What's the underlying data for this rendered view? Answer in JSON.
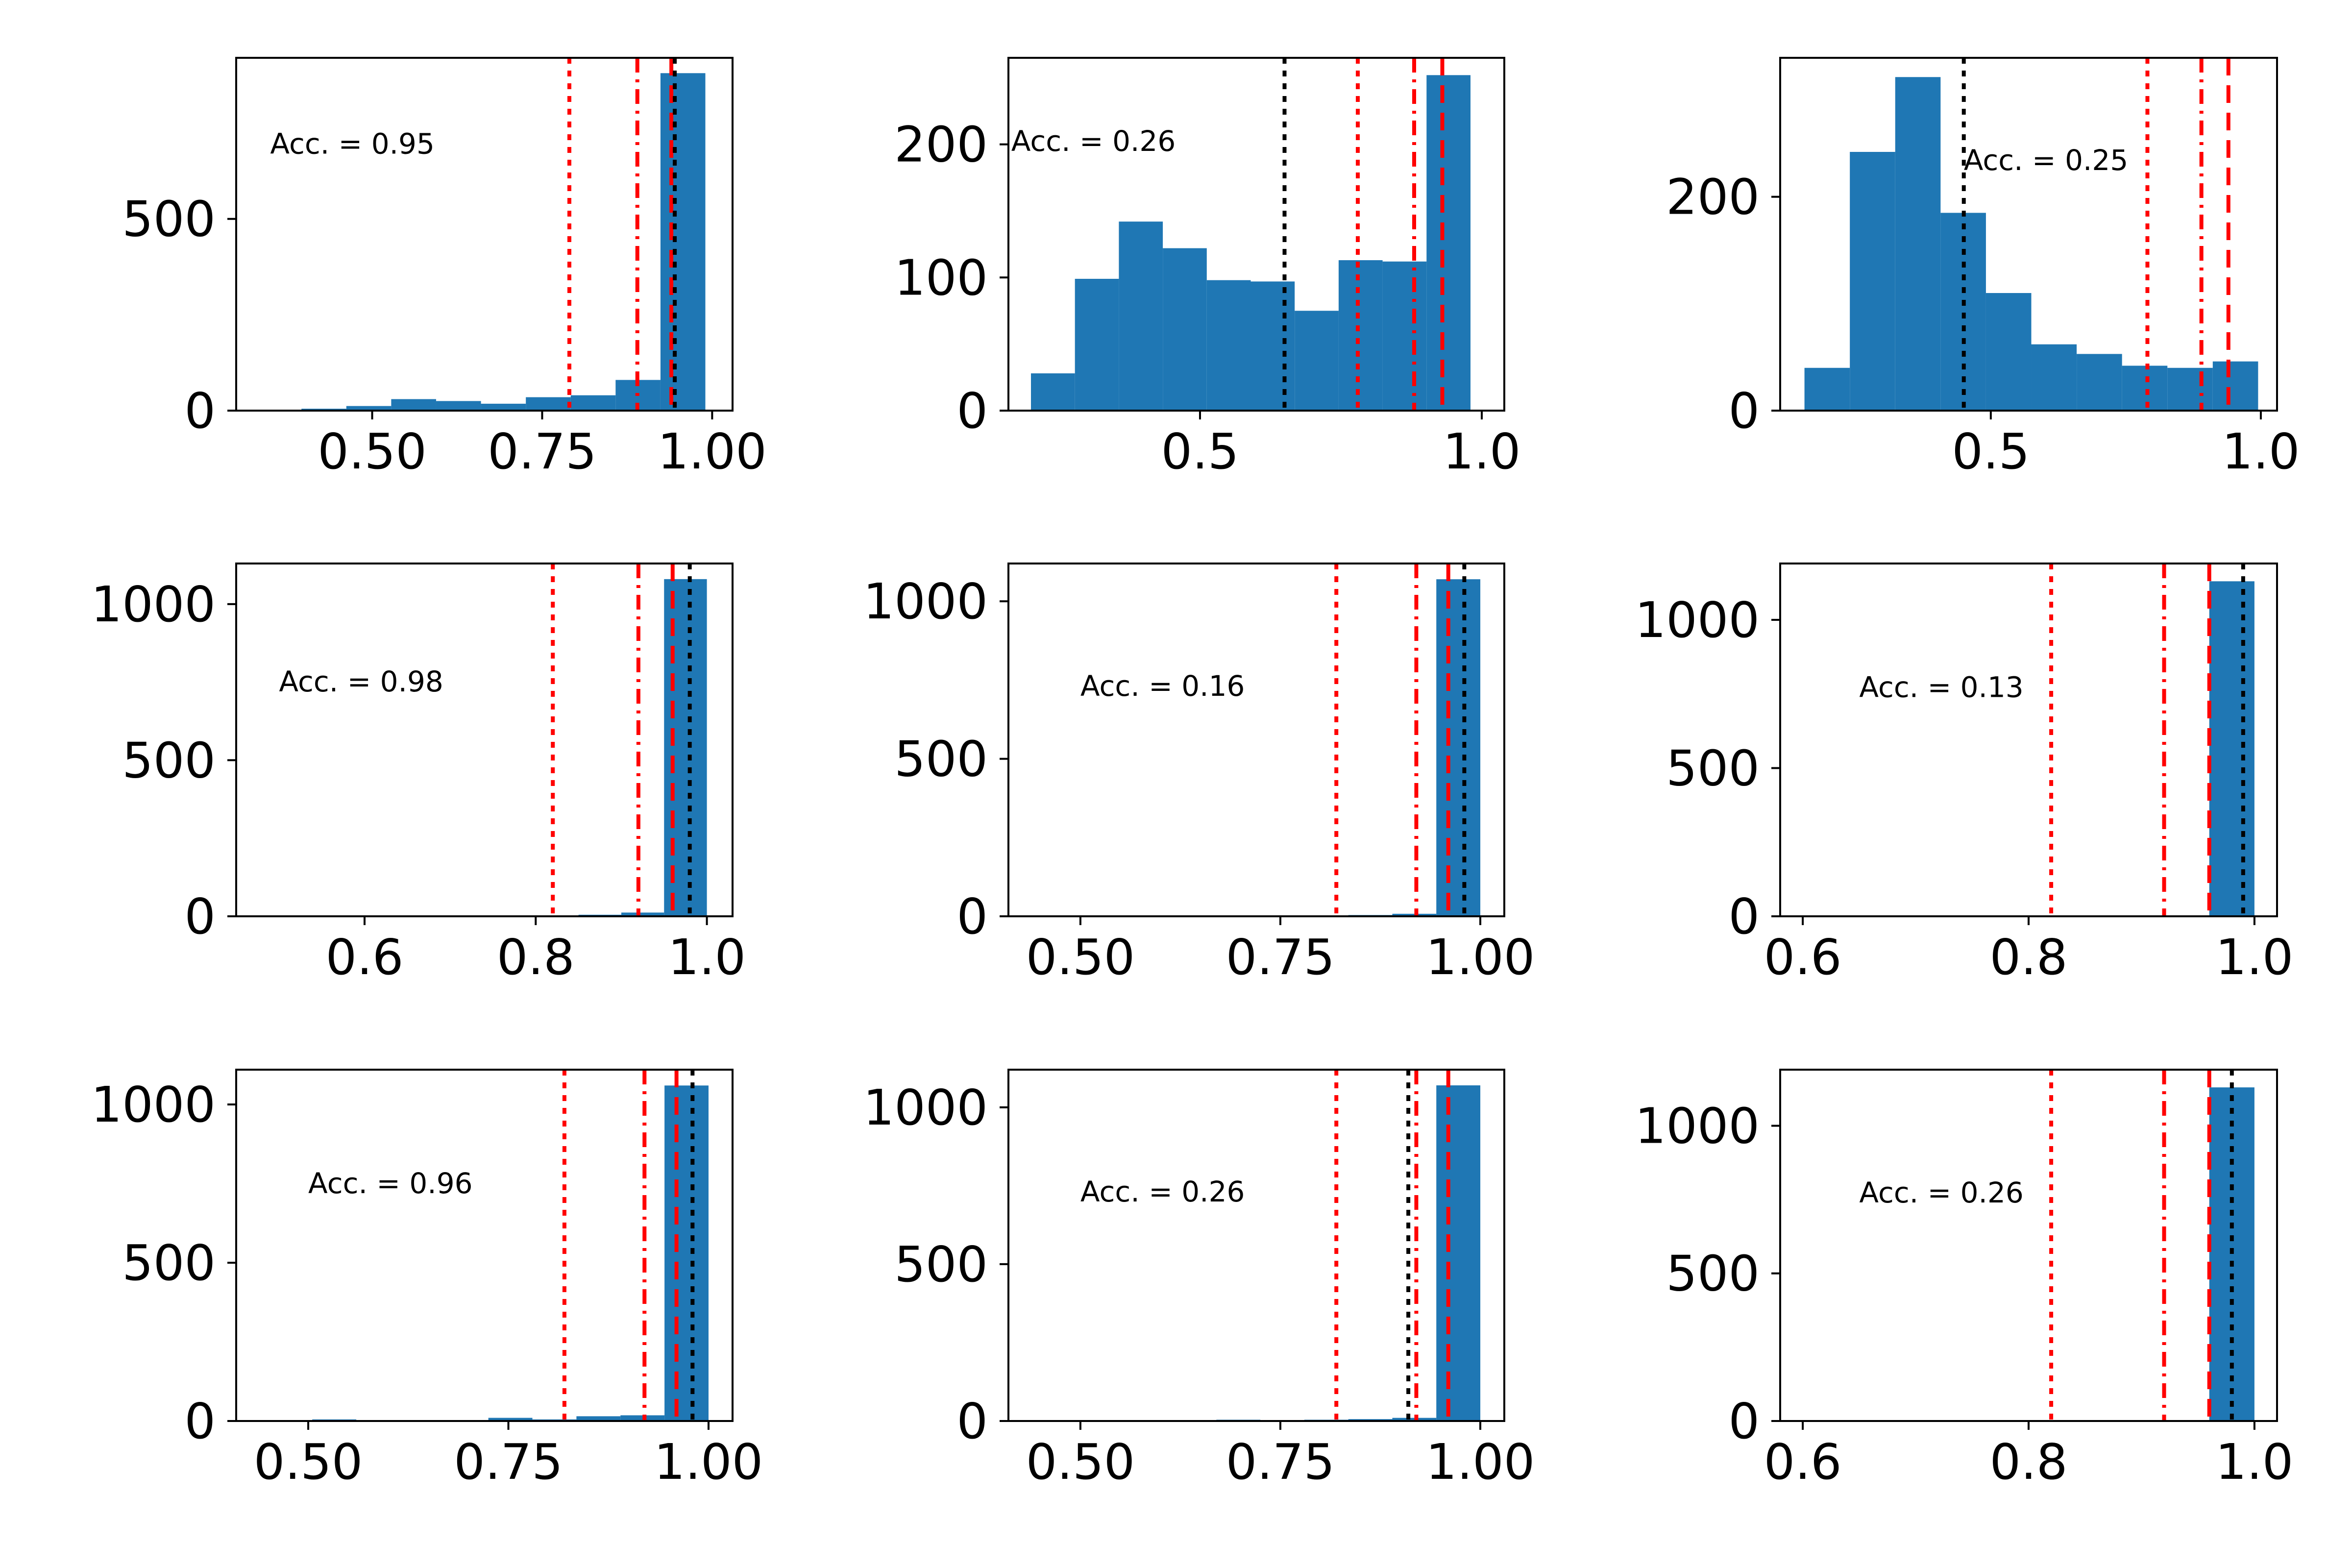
{
  "colors": {
    "bar": "#1f77b4",
    "threshold": "#ff0000",
    "marker": "#000000",
    "axis": "#000000",
    "background": "#ffffff"
  },
  "chart_data": [
    {
      "type": "bar",
      "subtype": "histogram",
      "title": "",
      "xlabel": "",
      "ylabel": "",
      "annotation": "Acc. = 0.95",
      "annotation_pos": [
        0.35,
        670
      ],
      "xlim": [
        0.3,
        1.03
      ],
      "ylim": [
        0,
        920
      ],
      "xticks": [
        0.5,
        0.75,
        1.0
      ],
      "xtick_labels": [
        "0.50",
        "0.75",
        "1.00"
      ],
      "yticks": [
        0,
        500
      ],
      "ytick_labels": [
        "0",
        "500"
      ],
      "bin_edges": [
        0.33,
        0.396,
        0.462,
        0.528,
        0.594,
        0.66,
        0.726,
        0.792,
        0.858,
        0.924,
        0.99
      ],
      "counts": [
        2,
        5,
        12,
        30,
        25,
        18,
        35,
        40,
        80,
        880
      ],
      "vlines": [
        {
          "x": 0.79,
          "style": "dotted",
          "color": "#ff0000"
        },
        {
          "x": 0.89,
          "style": "dashdot",
          "color": "#ff0000"
        },
        {
          "x": 0.94,
          "style": "dashed",
          "color": "#ff0000"
        },
        {
          "x": 0.945,
          "style": "dotted",
          "color": "#000000"
        }
      ]
    },
    {
      "type": "bar",
      "subtype": "histogram",
      "title": "",
      "xlabel": "",
      "ylabel": "",
      "annotation": "Acc. = 0.26",
      "annotation_pos": [
        0.165,
        195
      ],
      "xlim": [
        0.16,
        1.04
      ],
      "ylim": [
        0,
        265
      ],
      "xticks": [
        0.5,
        1.0
      ],
      "xtick_labels": [
        "0.5",
        "1.0"
      ],
      "yticks": [
        0,
        100,
        200
      ],
      "ytick_labels": [
        "0",
        "100",
        "200"
      ],
      "bin_edges": [
        0.2,
        0.278,
        0.356,
        0.434,
        0.512,
        0.59,
        0.668,
        0.746,
        0.824,
        0.902,
        0.98
      ],
      "counts": [
        28,
        99,
        142,
        122,
        98,
        97,
        75,
        113,
        112,
        252
      ],
      "vlines": [
        {
          "x": 0.65,
          "style": "dotted",
          "color": "#000000"
        },
        {
          "x": 0.78,
          "style": "dotted",
          "color": "#ff0000"
        },
        {
          "x": 0.88,
          "style": "dashdot",
          "color": "#ff0000"
        },
        {
          "x": 0.93,
          "style": "dashed",
          "color": "#ff0000"
        }
      ]
    },
    {
      "type": "bar",
      "subtype": "histogram",
      "title": "",
      "xlabel": "",
      "ylabel": "",
      "annotation": "Acc. = 0.25",
      "annotation_pos": [
        0.45,
        225
      ],
      "xlim": [
        0.11,
        1.03
      ],
      "ylim": [
        0,
        330
      ],
      "xticks": [
        0.5,
        1.0
      ],
      "xtick_labels": [
        "0.5",
        "1.0"
      ],
      "yticks": [
        0,
        200
      ],
      "ytick_labels": [
        "0",
        "200"
      ],
      "bin_edges": [
        0.155,
        0.239,
        0.323,
        0.407,
        0.491,
        0.575,
        0.659,
        0.743,
        0.827,
        0.911,
        0.995
      ],
      "counts": [
        40,
        242,
        312,
        185,
        110,
        62,
        53,
        42,
        40,
        46
      ],
      "vlines": [
        {
          "x": 0.45,
          "style": "dotted",
          "color": "#000000"
        },
        {
          "x": 0.79,
          "style": "dotted",
          "color": "#ff0000"
        },
        {
          "x": 0.89,
          "style": "dashdot",
          "color": "#ff0000"
        },
        {
          "x": 0.94,
          "style": "dashed",
          "color": "#ff0000"
        }
      ]
    },
    {
      "type": "bar",
      "subtype": "histogram",
      "title": "",
      "xlabel": "",
      "ylabel": "",
      "annotation": "Acc. = 0.98",
      "annotation_pos": [
        0.5,
        720
      ],
      "xlim": [
        0.45,
        1.03
      ],
      "ylim": [
        0,
        1130
      ],
      "xticks": [
        0.6,
        0.8,
        1.0
      ],
      "xtick_labels": [
        "0.6",
        "0.8",
        "1.0"
      ],
      "yticks": [
        0,
        500,
        1000
      ],
      "ytick_labels": [
        "0",
        "500",
        "1000"
      ],
      "bin_edges": [
        0.5,
        0.55,
        0.6,
        0.65,
        0.7,
        0.75,
        0.8,
        0.85,
        0.9,
        0.95,
        1.0
      ],
      "counts": [
        0,
        0,
        0,
        0,
        0,
        1,
        3,
        5,
        12,
        1080
      ],
      "vlines": [
        {
          "x": 0.82,
          "style": "dotted",
          "color": "#ff0000"
        },
        {
          "x": 0.92,
          "style": "dashdot",
          "color": "#ff0000"
        },
        {
          "x": 0.96,
          "style": "dashed",
          "color": "#ff0000"
        },
        {
          "x": 0.98,
          "style": "dotted",
          "color": "#000000"
        }
      ]
    },
    {
      "type": "bar",
      "subtype": "histogram",
      "title": "",
      "xlabel": "",
      "ylabel": "",
      "annotation": "Acc. = 0.16",
      "annotation_pos": [
        0.5,
        700
      ],
      "xlim": [
        0.41,
        1.03
      ],
      "ylim": [
        0,
        1120
      ],
      "xticks": [
        0.5,
        0.75,
        1.0
      ],
      "xtick_labels": [
        "0.50",
        "0.75",
        "1.00"
      ],
      "yticks": [
        0,
        500,
        1000
      ],
      "ytick_labels": [
        "0",
        "500",
        "1000"
      ],
      "bin_edges": [
        0.45,
        0.505,
        0.56,
        0.615,
        0.67,
        0.725,
        0.78,
        0.835,
        0.89,
        0.945,
        1.0
      ],
      "counts": [
        0,
        1,
        2,
        1,
        2,
        1,
        3,
        4,
        8,
        1070
      ],
      "vlines": [
        {
          "x": 0.82,
          "style": "dotted",
          "color": "#ff0000"
        },
        {
          "x": 0.92,
          "style": "dashdot",
          "color": "#ff0000"
        },
        {
          "x": 0.96,
          "style": "dashed",
          "color": "#ff0000"
        },
        {
          "x": 0.98,
          "style": "dotted",
          "color": "#000000"
        }
      ]
    },
    {
      "type": "bar",
      "subtype": "histogram",
      "title": "",
      "xlabel": "",
      "ylabel": "",
      "annotation": "Acc. = 0.13",
      "annotation_pos": [
        0.65,
        740
      ],
      "xlim": [
        0.58,
        1.02
      ],
      "ylim": [
        0,
        1190
      ],
      "xticks": [
        0.6,
        0.8,
        1.0
      ],
      "xtick_labels": [
        "0.6",
        "0.8",
        "1.0"
      ],
      "yticks": [
        0,
        500,
        1000
      ],
      "ytick_labels": [
        "0",
        "500",
        "1000"
      ],
      "bin_edges": [
        0.6,
        0.64,
        0.68,
        0.72,
        0.76,
        0.8,
        0.84,
        0.88,
        0.92,
        0.96,
        1.0
      ],
      "counts": [
        0,
        0,
        0,
        0,
        0,
        0,
        0,
        0,
        0,
        1130
      ],
      "vlines": [
        {
          "x": 0.82,
          "style": "dotted",
          "color": "#ff0000"
        },
        {
          "x": 0.92,
          "style": "dashdot",
          "color": "#ff0000"
        },
        {
          "x": 0.96,
          "style": "dashed",
          "color": "#ff0000"
        },
        {
          "x": 0.99,
          "style": "dotted",
          "color": "#000000"
        }
      ]
    },
    {
      "type": "bar",
      "subtype": "histogram",
      "title": "",
      "xlabel": "",
      "ylabel": "",
      "annotation": "Acc. = 0.96",
      "annotation_pos": [
        0.5,
        720
      ],
      "xlim": [
        0.41,
        1.03
      ],
      "ylim": [
        0,
        1110
      ],
      "xticks": [
        0.5,
        0.75,
        1.0
      ],
      "xtick_labels": [
        "0.50",
        "0.75",
        "1.00"
      ],
      "yticks": [
        0,
        500,
        1000
      ],
      "ytick_labels": [
        "0",
        "500",
        "1000"
      ],
      "bin_edges": [
        0.45,
        0.505,
        0.56,
        0.615,
        0.67,
        0.725,
        0.78,
        0.835,
        0.89,
        0.945,
        1.0
      ],
      "counts": [
        3,
        5,
        2,
        2,
        3,
        10,
        5,
        15,
        18,
        1060
      ],
      "vlines": [
        {
          "x": 0.82,
          "style": "dotted",
          "color": "#ff0000"
        },
        {
          "x": 0.92,
          "style": "dashdot",
          "color": "#ff0000"
        },
        {
          "x": 0.96,
          "style": "dashed",
          "color": "#ff0000"
        },
        {
          "x": 0.98,
          "style": "dotted",
          "color": "#000000"
        }
      ]
    },
    {
      "type": "bar",
      "subtype": "histogram",
      "title": "",
      "xlabel": "",
      "ylabel": "",
      "annotation": "Acc. = 0.26",
      "annotation_pos": [
        0.5,
        700
      ],
      "xlim": [
        0.41,
        1.03
      ],
      "ylim": [
        0,
        1120
      ],
      "xticks": [
        0.5,
        0.75,
        1.0
      ],
      "xtick_labels": [
        "0.50",
        "0.75",
        "1.00"
      ],
      "yticks": [
        0,
        500,
        1000
      ],
      "ytick_labels": [
        "0",
        "500",
        "1000"
      ],
      "bin_edges": [
        0.45,
        0.505,
        0.56,
        0.615,
        0.67,
        0.725,
        0.78,
        0.835,
        0.89,
        0.945,
        1.0
      ],
      "counts": [
        0,
        2,
        3,
        1,
        4,
        3,
        4,
        6,
        10,
        1070
      ],
      "vlines": [
        {
          "x": 0.82,
          "style": "dotted",
          "color": "#ff0000"
        },
        {
          "x": 0.91,
          "style": "dotted",
          "color": "#000000"
        },
        {
          "x": 0.92,
          "style": "dashdot",
          "color": "#ff0000"
        },
        {
          "x": 0.96,
          "style": "dashed",
          "color": "#ff0000"
        }
      ]
    },
    {
      "type": "bar",
      "subtype": "histogram",
      "title": "",
      "xlabel": "",
      "ylabel": "",
      "annotation": "Acc. = 0.26",
      "annotation_pos": [
        0.65,
        740
      ],
      "xlim": [
        0.58,
        1.02
      ],
      "ylim": [
        0,
        1190
      ],
      "xticks": [
        0.6,
        0.8,
        1.0
      ],
      "xtick_labels": [
        "0.6",
        "0.8",
        "1.0"
      ],
      "yticks": [
        0,
        500,
        1000
      ],
      "ytick_labels": [
        "0",
        "500",
        "1000"
      ],
      "bin_edges": [
        0.6,
        0.64,
        0.68,
        0.72,
        0.76,
        0.8,
        0.84,
        0.88,
        0.92,
        0.96,
        1.0
      ],
      "counts": [
        0,
        0,
        0,
        0,
        0,
        0,
        0,
        0,
        0,
        1130
      ],
      "vlines": [
        {
          "x": 0.82,
          "style": "dotted",
          "color": "#ff0000"
        },
        {
          "x": 0.92,
          "style": "dashdot",
          "color": "#ff0000"
        },
        {
          "x": 0.96,
          "style": "dashed",
          "color": "#ff0000"
        },
        {
          "x": 0.98,
          "style": "dotted",
          "color": "#000000"
        }
      ]
    }
  ]
}
